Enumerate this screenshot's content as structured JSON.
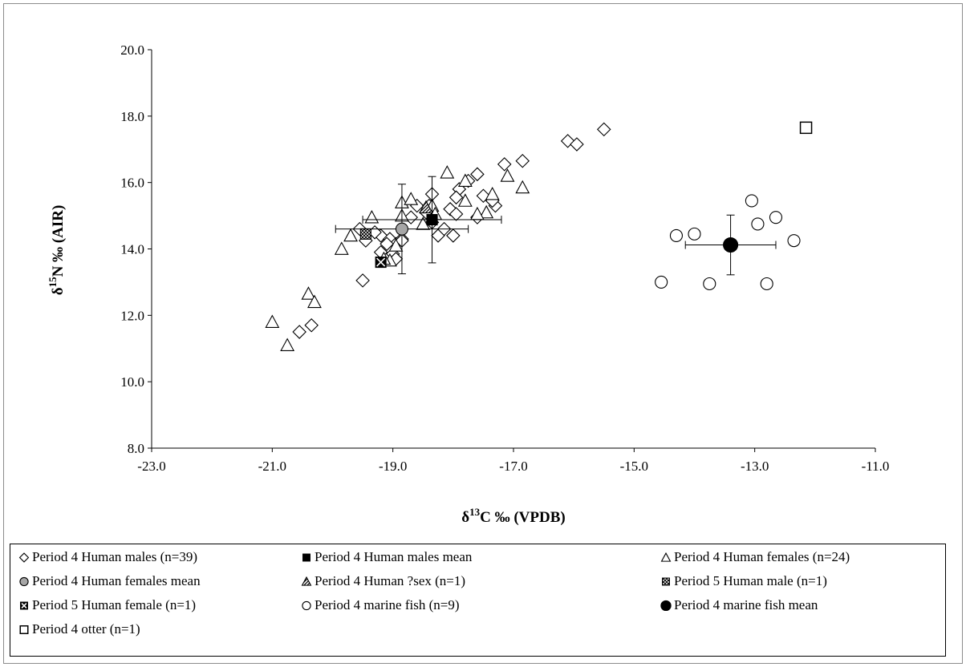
{
  "chart_data": {
    "type": "scatter",
    "xlabel_main": "δ",
    "xlabel_sup": "13",
    "xlabel_rest": "C ‰  (VPDB)",
    "ylabel_main": "δ",
    "ylabel_sup": "15",
    "ylabel_rest": "N ‰  (AIR)",
    "xlim": [
      -23,
      -11
    ],
    "ylim": [
      8,
      20
    ],
    "x_ticks": [
      -23.0,
      -21.0,
      -19.0,
      -17.0,
      -15.0,
      -13.0,
      -11.0
    ],
    "y_ticks": [
      8.0,
      10.0,
      12.0,
      14.0,
      16.0,
      18.0,
      20.0
    ],
    "grid": false,
    "legend_position": "bottom",
    "series": [
      {
        "name": "Period 4 Human males (n=39)",
        "marker": "diamond-open",
        "points": [
          [
            -20.55,
            11.5
          ],
          [
            -20.35,
            11.7
          ],
          [
            -19.5,
            13.05
          ],
          [
            -19.55,
            14.6
          ],
          [
            -19.45,
            14.25
          ],
          [
            -19.2,
            13.9
          ],
          [
            -19.2,
            14.4
          ],
          [
            -19.05,
            14.3
          ],
          [
            -19.0,
            13.85
          ],
          [
            -18.95,
            13.7
          ],
          [
            -18.95,
            14.15
          ],
          [
            -18.85,
            14.3
          ],
          [
            -18.6,
            15.3
          ],
          [
            -18.4,
            15.3
          ],
          [
            -18.35,
            15.65
          ],
          [
            -18.25,
            14.4
          ],
          [
            -18.15,
            14.6
          ],
          [
            -18.05,
            15.2
          ],
          [
            -18.0,
            14.4
          ],
          [
            -17.95,
            15.05
          ],
          [
            -17.9,
            15.8
          ],
          [
            -17.75,
            16.05
          ],
          [
            -17.6,
            16.25
          ],
          [
            -17.6,
            14.95
          ],
          [
            -17.5,
            15.6
          ],
          [
            -17.3,
            15.3
          ],
          [
            -17.15,
            16.55
          ],
          [
            -16.85,
            16.65
          ],
          [
            -16.1,
            17.25
          ],
          [
            -15.95,
            17.15
          ],
          [
            -15.5,
            17.6
          ],
          [
            -18.35,
            14.8
          ],
          [
            -18.45,
            15.1
          ],
          [
            -18.85,
            14.25
          ],
          [
            -19.1,
            14.15
          ],
          [
            -19.3,
            14.5
          ],
          [
            -18.7,
            14.95
          ],
          [
            -17.95,
            15.55
          ],
          [
            -17.35,
            15.45
          ]
        ]
      },
      {
        "name": "Period 4 Human males mean",
        "marker": "square-filled",
        "points": [
          [
            -18.35,
            14.88
          ]
        ],
        "x_err": 1.15,
        "y_err": 1.3
      },
      {
        "name": "Period 4 Human females (n=24)",
        "marker": "triangle-open",
        "points": [
          [
            -21.0,
            11.8
          ],
          [
            -20.75,
            11.1
          ],
          [
            -20.4,
            12.65
          ],
          [
            -20.3,
            12.4
          ],
          [
            -19.85,
            14.0
          ],
          [
            -19.7,
            14.4
          ],
          [
            -19.35,
            14.95
          ],
          [
            -18.85,
            15.4
          ],
          [
            -18.85,
            15.0
          ],
          [
            -18.7,
            15.5
          ],
          [
            -18.5,
            14.75
          ],
          [
            -18.35,
            15.3
          ],
          [
            -18.1,
            16.3
          ],
          [
            -17.8,
            15.45
          ],
          [
            -17.8,
            16.05
          ],
          [
            -17.45,
            15.1
          ],
          [
            -17.35,
            15.65
          ],
          [
            -17.1,
            16.2
          ],
          [
            -16.85,
            15.85
          ],
          [
            -19.05,
            13.65
          ],
          [
            -19.15,
            13.7
          ],
          [
            -18.95,
            14.1
          ],
          [
            -18.3,
            15.05
          ],
          [
            -17.6,
            15.05
          ]
        ]
      },
      {
        "name": "Period 4 Human females mean",
        "marker": "circle-grey",
        "points": [
          [
            -18.85,
            14.6
          ]
        ],
        "x_err": 1.1,
        "y_err": 1.35
      },
      {
        "name": "Period 4 Human ?sex (n=1)",
        "marker": "triangle-hatched",
        "points": [
          [
            -18.45,
            15.25
          ]
        ]
      },
      {
        "name": "Period 5 Human male (n=1)",
        "marker": "square-hatched",
        "points": [
          [
            -19.45,
            14.45
          ]
        ]
      },
      {
        "name": "Period 5 Human female (n=1)",
        "marker": "square-x",
        "points": [
          [
            -19.2,
            13.6
          ]
        ]
      },
      {
        "name": "Period 4 marine fish (n=9)",
        "marker": "circle-open",
        "points": [
          [
            -14.55,
            13.0
          ],
          [
            -14.3,
            14.4
          ],
          [
            -14.0,
            14.45
          ],
          [
            -13.75,
            12.95
          ],
          [
            -13.05,
            15.45
          ],
          [
            -12.95,
            14.75
          ],
          [
            -12.8,
            12.95
          ],
          [
            -12.65,
            14.95
          ],
          [
            -12.35,
            14.25
          ]
        ]
      },
      {
        "name": "Period 4 marine fish mean",
        "marker": "circle-filled",
        "points": [
          [
            -13.4,
            14.12
          ]
        ],
        "x_err": 0.75,
        "y_err": 0.9
      },
      {
        "name": "Period 4 otter (n=1)",
        "marker": "square-open",
        "points": [
          [
            -12.15,
            17.65
          ]
        ]
      }
    ]
  }
}
